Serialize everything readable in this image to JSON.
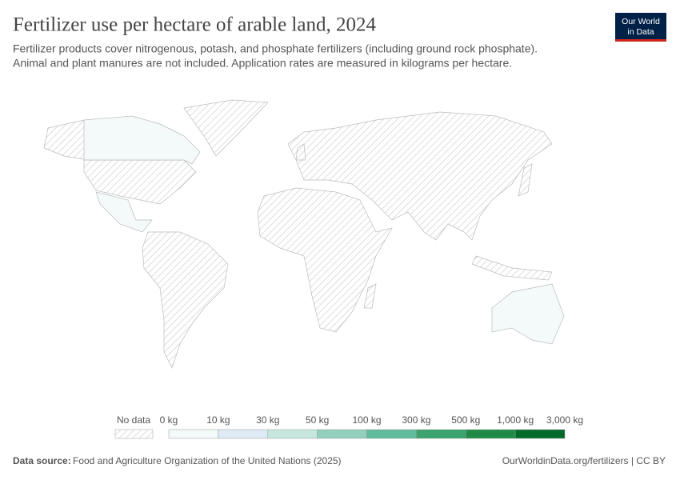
{
  "header": {
    "title": "Fertilizer use per hectare of arable land, 2024",
    "subtitle_lines": [
      "Fertilizer products cover nitrogenous, potash, and phosphate fertilizers (including ground rock phosphate).",
      "Animal and plant manures are not included. Application rates are measured in kilograms per hectare."
    ],
    "logo_lines": [
      "Our World",
      "in Data"
    ]
  },
  "legend": {
    "no_data": "No data",
    "labels": [
      "0 kg",
      "10 kg",
      "30 kg",
      "50 kg",
      "100 kg",
      "300 kg",
      "500 kg",
      "1,000 kg",
      "3,000 kg"
    ],
    "colors": [
      "#f4faf9",
      "#dfebf4",
      "#c6e7dd",
      "#92d0bd",
      "#5fbb9b",
      "#3aa36e",
      "#1f8a46",
      "#006a2a"
    ]
  },
  "footer": {
    "source_label": "Data source:",
    "source": "Food and Agriculture Organization of the United Nations (2025)",
    "url": "OurWorldinData.org/fertilizers | CC BY"
  }
}
